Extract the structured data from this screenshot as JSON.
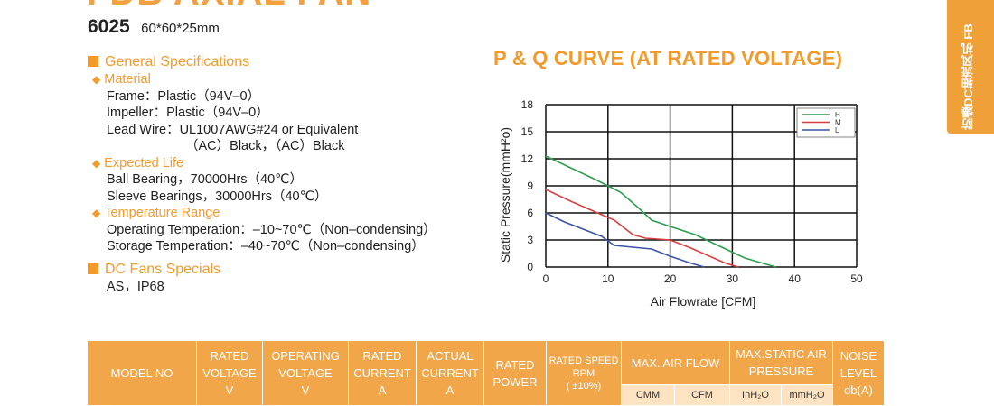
{
  "header": {
    "title": "FDB AXIAL FAN",
    "model": "6025",
    "size": "60*60*25mm"
  },
  "side_tab": {
    "label": "防爆DC轴流风机 FB"
  },
  "specs": {
    "general_heading": "General Specifications",
    "material": {
      "heading": "Material",
      "frame": "Frame：Plastic（94V–0）",
      "impeller": "Impeller：Plastic（94V–0）",
      "lead_wire": "Lead Wire：UL1007AWG#24 or Equivalent",
      "lead_wire_cont": "（AC）Black，（AC）Black"
    },
    "life": {
      "heading": "Expected Life",
      "ball": "Ball Bearing，70000Hrs（40℃）",
      "sleeve": "Sleeve Bearings，30000Hrs（40℃）"
    },
    "temperature": {
      "heading": "Temperature Range",
      "operating": "Operating Temperation：–10~70℃（Non–condensing）",
      "storage": "Storage Temperation：–40~70℃（Non–condensing）"
    },
    "dc_heading": "DC Fans Specials",
    "dc_value": "AS，IP68"
  },
  "chart_data": {
    "type": "line",
    "title": "P & Q CURVE (AT RATED VOLTAGE)",
    "xlabel": "Air  Flowrate  [CFM]",
    "ylabel": "Static Pressure(mmH²o)",
    "xlim": [
      0,
      50
    ],
    "ylim": [
      0,
      18
    ],
    "xticks": [
      0,
      10,
      20,
      30,
      40,
      50
    ],
    "yticks": [
      0,
      3,
      6,
      9,
      12,
      15,
      18
    ],
    "grid": true,
    "legend_position": "top-right",
    "series": [
      {
        "name": "H",
        "color": "#2e9e4e",
        "points": [
          [
            0,
            12.3
          ],
          [
            4,
            11
          ],
          [
            8,
            9.7
          ],
          [
            12,
            8.3
          ],
          [
            15,
            6.5
          ],
          [
            17,
            5.2
          ],
          [
            20,
            4.5
          ],
          [
            24,
            3.6
          ],
          [
            28,
            2.3
          ],
          [
            32,
            1.0
          ],
          [
            37,
            0
          ]
        ]
      },
      {
        "name": "M",
        "color": "#d84040",
        "points": [
          [
            0,
            8.6
          ],
          [
            4,
            7.3
          ],
          [
            8,
            6.1
          ],
          [
            11,
            5.2
          ],
          [
            14,
            3.6
          ],
          [
            16,
            3.2
          ],
          [
            20,
            3.0
          ],
          [
            23,
            2.2
          ],
          [
            26,
            1.3
          ],
          [
            29,
            0.4
          ],
          [
            31,
            0
          ]
        ]
      },
      {
        "name": "L",
        "color": "#3a55a8",
        "points": [
          [
            0,
            6
          ],
          [
            3,
            5
          ],
          [
            6,
            4.2
          ],
          [
            9,
            3.4
          ],
          [
            11,
            2.4
          ],
          [
            14,
            2.2
          ],
          [
            17,
            2.0
          ],
          [
            20,
            1.2
          ],
          [
            23,
            0.5
          ],
          [
            25.5,
            0
          ]
        ]
      }
    ]
  },
  "table": {
    "headers": {
      "model": "MODEL NO",
      "rated_voltage": [
        "RATED",
        "VOLTAGE",
        "V"
      ],
      "operating_voltage": [
        "OPERATING",
        "VOLTAGE",
        "V"
      ],
      "rated_current": [
        "RATED",
        "CURRENT",
        "A"
      ],
      "actual_current": [
        "ACTUAL",
        "CURRENT",
        "A"
      ],
      "rated_power": [
        "RATED",
        "POWER"
      ],
      "rated_speed": [
        "RATED SPEED",
        "RPM",
        "( ±10%)"
      ],
      "air_flow": "MAX. AIR FLOW",
      "static_pressure": [
        "MAX.STATIC AIR",
        "PRESSURE"
      ],
      "noise": [
        "NOISE",
        "LEVEL",
        "db(A)"
      ]
    },
    "units": {
      "cmm": "CMM",
      "cfm": "CFM",
      "inh2o": "InH₂O",
      "mmh2o": "mmH₂O"
    }
  }
}
